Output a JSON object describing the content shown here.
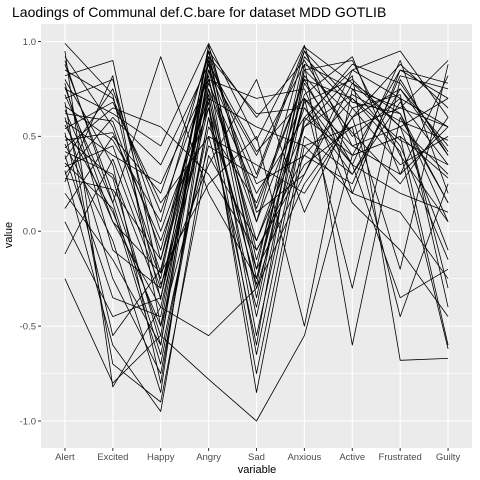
{
  "chart_data": {
    "type": "line",
    "title": "Laodings of Communal def.C.bare for dataset MDD GOTLIB",
    "xlabel": "variable",
    "ylabel": "value",
    "categories": [
      "Alert",
      "Excited",
      "Happy",
      "Angry",
      "Sad",
      "Anxious",
      "Active",
      "Frustrated",
      "Guilty"
    ],
    "ylim": [
      -1.05,
      1.0
    ],
    "yticks": [
      -1.0,
      -0.5,
      0.0,
      0.5,
      1.0
    ],
    "ytick_labels": [
      "-1.0",
      "-0.5",
      "0.0",
      "0.5",
      "1.0"
    ],
    "grid": true,
    "line_color": "#000000",
    "panel_background": "#ebebeb",
    "grid_color": "#ffffff",
    "series": [
      {
        "values": [
          0.99,
          0.72,
          -0.36,
          0.98,
          0.12,
          0.8,
          0.35,
          0.9,
          0.2
        ]
      },
      {
        "values": [
          0.92,
          0.55,
          -0.22,
          0.95,
          -0.25,
          0.85,
          0.6,
          0.75,
          0.45
        ]
      },
      {
        "values": [
          0.88,
          0.2,
          -0.55,
          0.9,
          0.3,
          0.97,
          0.78,
          0.55,
          -0.1
        ]
      },
      {
        "values": [
          0.85,
          0.7,
          0.1,
          0.82,
          -0.55,
          0.6,
          0.4,
          0.85,
          0.7
        ]
      },
      {
        "values": [
          0.8,
          0.35,
          -0.8,
          0.75,
          0.05,
          0.72,
          0.92,
          0.3,
          0.55
        ]
      },
      {
        "values": [
          0.78,
          -0.1,
          -0.3,
          0.68,
          -0.85,
          0.45,
          0.55,
          0.65,
          0.9
        ]
      },
      {
        "values": [
          0.75,
          0.62,
          0.45,
          0.99,
          0.48,
          0.98,
          0.2,
          0.1,
          -0.25
        ]
      },
      {
        "values": [
          0.72,
          0.15,
          -0.65,
          0.55,
          0.15,
          0.8,
          0.7,
          0.48,
          0.35
        ]
      },
      {
        "values": [
          0.7,
          0.8,
          -0.15,
          0.88,
          -0.2,
          0.3,
          0.85,
          0.95,
          0.6
        ]
      },
      {
        "values": [
          0.68,
          -0.7,
          -0.9,
          0.4,
          -0.05,
          0.65,
          0.35,
          0.2,
          0.1
        ]
      },
      {
        "values": [
          0.66,
          0.48,
          0.05,
          0.95,
          0.6,
          0.9,
          0.5,
          0.7,
          -0.3
        ]
      },
      {
        "values": [
          0.64,
          0.05,
          -0.4,
          0.7,
          -0.3,
          0.55,
          0.72,
          0.58,
          0.48
        ]
      },
      {
        "values": [
          0.62,
          0.58,
          -0.1,
          0.85,
          0.25,
          0.4,
          0.25,
          0.82,
          0.75
        ]
      },
      {
        "values": [
          0.6,
          -0.25,
          -0.75,
          0.6,
          -0.6,
          0.85,
          0.9,
          0.4,
          0.05
        ]
      },
      {
        "values": [
          0.58,
          0.4,
          0.25,
          0.8,
          0.7,
          0.75,
          0.15,
          -0.1,
          -0.45
        ]
      },
      {
        "values": [
          0.56,
          0.1,
          -0.5,
          0.92,
          -0.15,
          0.68,
          0.8,
          0.55,
          0.3
        ]
      },
      {
        "values": [
          0.54,
          0.68,
          0.15,
          0.5,
          0.35,
          0.2,
          0.6,
          0.88,
          0.65
        ]
      },
      {
        "values": [
          0.52,
          -0.55,
          -0.2,
          0.75,
          -0.45,
          0.7,
          0.45,
          0.3,
          0.82
        ]
      },
      {
        "values": [
          0.5,
          0.28,
          -0.6,
          0.98,
          0.05,
          0.95,
          0.68,
          0.62,
          0.15
        ]
      },
      {
        "values": [
          0.48,
          0.52,
          -0.05,
          0.65,
          -0.75,
          0.5,
          0.3,
          0.75,
          0.4
        ]
      },
      {
        "values": [
          0.46,
          -0.05,
          -0.85,
          0.85,
          0.4,
          0.88,
          0.75,
          0.45,
          -0.15
        ]
      },
      {
        "values": [
          0.44,
          0.65,
          0.55,
          0.3,
          -0.1,
          0.35,
          0.55,
          -0.45,
          0.25
        ]
      },
      {
        "values": [
          0.42,
          0.3,
          -0.35,
          0.78,
          0.2,
          0.6,
          0.85,
          0.7,
          0.55
        ]
      },
      {
        "values": [
          0.4,
          -0.35,
          -0.45,
          0.9,
          -0.35,
          0.78,
          0.4,
          0.5,
          -0.6
        ]
      },
      {
        "values": [
          0.38,
          0.75,
          0.0,
          0.7,
          0.55,
          0.45,
          0.2,
          0.85,
          0.78
        ]
      },
      {
        "values": [
          0.36,
          0.12,
          -0.7,
          0.6,
          -0.2,
          0.92,
          0.65,
          0.35,
          0.5
        ]
      },
      {
        "values": [
          0.34,
          0.45,
          -0.25,
          0.95,
          0.1,
          0.3,
          0.78,
          0.62,
          0.05
        ]
      },
      {
        "values": [
          0.32,
          -0.6,
          -0.95,
          0.5,
          -0.4,
          0.82,
          0.52,
          0.25,
          0.6
        ]
      },
      {
        "values": [
          0.3,
          0.6,
          0.35,
          0.88,
          0.42,
          0.7,
          0.35,
          -0.35,
          -0.2
        ]
      },
      {
        "values": [
          0.28,
          0.22,
          -0.15,
          0.72,
          -0.65,
          0.58,
          0.88,
          0.78,
          0.42
        ]
      },
      {
        "values": [
          0.26,
          0.82,
          -0.5,
          0.45,
          0.28,
          0.95,
          0.45,
          0.55,
          0.7
        ]
      },
      {
        "values": [
          0.2,
          -0.15,
          -0.6,
          0.85,
          -0.1,
          0.4,
          0.7,
          0.42,
          -0.62
        ]
      },
      {
        "values": [
          0.12,
          0.5,
          0.2,
          0.92,
          0.62,
          0.65,
          0.3,
          0.68,
          0.35
        ]
      },
      {
        "values": [
          0.05,
          -0.45,
          -0.35,
          0.65,
          -0.28,
          0.88,
          -0.6,
          0.6,
          0.15
        ]
      },
      {
        "values": [
          -0.12,
          0.38,
          -0.3,
          0.8,
          -0.05,
          0.55,
          0.82,
          -0.68,
          -0.67
        ]
      },
      {
        "values": [
          -0.25,
          -0.8,
          -0.55,
          -0.78,
          -1.0,
          -0.55,
          0.4,
          0.5,
          0.28
        ]
      },
      {
        "values": [
          0.95,
          -0.82,
          -0.4,
          -0.55,
          -0.3,
          0.25,
          0.6,
          -0.2,
          0.88
        ]
      },
      {
        "values": [
          0.9,
          0.15,
          0.92,
          0.2,
          -0.25,
          0.7,
          -0.3,
          0.8,
          0.4
        ]
      },
      {
        "values": [
          0.82,
          0.9,
          -0.28,
          0.35,
          0.8,
          0.1,
          0.65,
          0.72,
          -0.4
        ]
      },
      {
        "values": [
          0.76,
          0.05,
          -0.22,
          0.25,
          0.5,
          -0.5,
          0.75,
          0.65,
          0.55
        ]
      }
    ]
  }
}
